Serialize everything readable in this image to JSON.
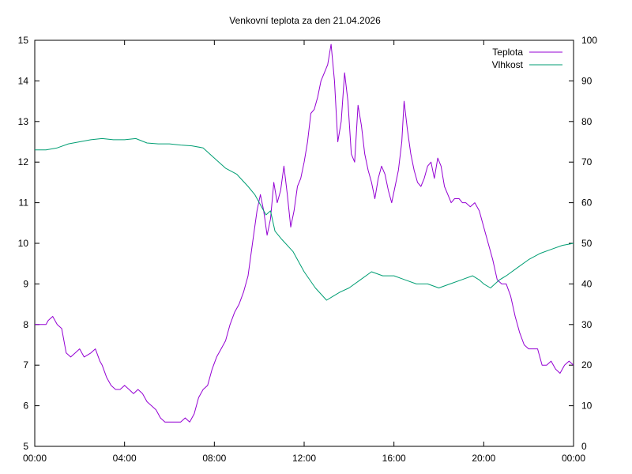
{
  "chart_data": {
    "type": "line",
    "title": "Venkovní teplota za den 21.04.2026",
    "xlabel": "",
    "ylabel": "",
    "y2label": "",
    "x_range_hours": [
      0,
      24
    ],
    "x_ticks": [
      {
        "h": 0,
        "label": "00:00"
      },
      {
        "h": 4,
        "label": "04:00"
      },
      {
        "h": 8,
        "label": "08:00"
      },
      {
        "h": 12,
        "label": "12:00"
      },
      {
        "h": 16,
        "label": "16:00"
      },
      {
        "h": 20,
        "label": "20:00"
      },
      {
        "h": 24,
        "label": "00:00"
      }
    ],
    "ylim": [
      5,
      15
    ],
    "y_ticks": [
      5,
      6,
      7,
      8,
      9,
      10,
      11,
      12,
      13,
      14,
      15
    ],
    "y2lim": [
      0,
      100
    ],
    "y2_ticks": [
      0,
      10,
      20,
      30,
      40,
      50,
      60,
      70,
      80,
      90,
      100
    ],
    "grid": false,
    "legend_position": "top-right",
    "series": [
      {
        "name": "Teplota",
        "axis": "left",
        "color": "#9400d3",
        "points": [
          [
            0.0,
            8.0
          ],
          [
            0.5,
            8.0
          ],
          [
            0.6,
            8.1
          ],
          [
            0.8,
            8.2
          ],
          [
            1.0,
            8.0
          ],
          [
            1.2,
            7.9
          ],
          [
            1.4,
            7.3
          ],
          [
            1.6,
            7.2
          ],
          [
            1.8,
            7.3
          ],
          [
            2.0,
            7.4
          ],
          [
            2.2,
            7.2
          ],
          [
            2.5,
            7.3
          ],
          [
            2.7,
            7.4
          ],
          [
            2.9,
            7.1
          ],
          [
            3.0,
            7.0
          ],
          [
            3.2,
            6.7
          ],
          [
            3.4,
            6.5
          ],
          [
            3.6,
            6.4
          ],
          [
            3.8,
            6.4
          ],
          [
            4.0,
            6.5
          ],
          [
            4.2,
            6.4
          ],
          [
            4.4,
            6.3
          ],
          [
            4.6,
            6.4
          ],
          [
            4.8,
            6.3
          ],
          [
            5.0,
            6.1
          ],
          [
            5.2,
            6.0
          ],
          [
            5.4,
            5.9
          ],
          [
            5.6,
            5.7
          ],
          [
            5.8,
            5.6
          ],
          [
            6.0,
            5.6
          ],
          [
            6.5,
            5.6
          ],
          [
            6.7,
            5.7
          ],
          [
            6.9,
            5.6
          ],
          [
            7.1,
            5.8
          ],
          [
            7.3,
            6.2
          ],
          [
            7.5,
            6.4
          ],
          [
            7.7,
            6.5
          ],
          [
            7.9,
            6.9
          ],
          [
            8.1,
            7.2
          ],
          [
            8.3,
            7.4
          ],
          [
            8.5,
            7.6
          ],
          [
            8.7,
            8.0
          ],
          [
            8.9,
            8.3
          ],
          [
            9.1,
            8.5
          ],
          [
            9.3,
            8.8
          ],
          [
            9.5,
            9.2
          ],
          [
            9.7,
            10.0
          ],
          [
            9.9,
            10.8
          ],
          [
            10.05,
            11.2
          ],
          [
            10.2,
            10.8
          ],
          [
            10.35,
            10.2
          ],
          [
            10.5,
            10.6
          ],
          [
            10.65,
            11.5
          ],
          [
            10.8,
            11.0
          ],
          [
            10.95,
            11.3
          ],
          [
            11.1,
            11.9
          ],
          [
            11.25,
            11.2
          ],
          [
            11.4,
            10.4
          ],
          [
            11.55,
            10.8
          ],
          [
            11.7,
            11.4
          ],
          [
            11.85,
            11.6
          ],
          [
            12.0,
            12.0
          ],
          [
            12.15,
            12.5
          ],
          [
            12.3,
            13.2
          ],
          [
            12.45,
            13.3
          ],
          [
            12.6,
            13.6
          ],
          [
            12.75,
            14.0
          ],
          [
            12.9,
            14.2
          ],
          [
            13.05,
            14.4
          ],
          [
            13.2,
            14.9
          ],
          [
            13.35,
            14.0
          ],
          [
            13.5,
            12.5
          ],
          [
            13.65,
            13.0
          ],
          [
            13.8,
            14.2
          ],
          [
            13.95,
            13.5
          ],
          [
            14.1,
            12.2
          ],
          [
            14.25,
            12.0
          ],
          [
            14.4,
            13.4
          ],
          [
            14.55,
            12.9
          ],
          [
            14.7,
            12.2
          ],
          [
            14.85,
            11.8
          ],
          [
            15.0,
            11.5
          ],
          [
            15.15,
            11.1
          ],
          [
            15.3,
            11.6
          ],
          [
            15.45,
            11.9
          ],
          [
            15.6,
            11.7
          ],
          [
            15.75,
            11.3
          ],
          [
            15.9,
            11.0
          ],
          [
            16.05,
            11.4
          ],
          [
            16.2,
            11.8
          ],
          [
            16.35,
            12.5
          ],
          [
            16.45,
            13.5
          ],
          [
            16.6,
            12.8
          ],
          [
            16.75,
            12.2
          ],
          [
            16.9,
            11.8
          ],
          [
            17.05,
            11.5
          ],
          [
            17.2,
            11.4
          ],
          [
            17.35,
            11.6
          ],
          [
            17.5,
            11.9
          ],
          [
            17.65,
            12.0
          ],
          [
            17.8,
            11.6
          ],
          [
            17.95,
            12.1
          ],
          [
            18.1,
            11.9
          ],
          [
            18.25,
            11.4
          ],
          [
            18.4,
            11.2
          ],
          [
            18.55,
            11.0
          ],
          [
            18.7,
            11.1
          ],
          [
            18.9,
            11.1
          ],
          [
            19.05,
            11.0
          ],
          [
            19.2,
            11.0
          ],
          [
            19.4,
            10.9
          ],
          [
            19.6,
            11.0
          ],
          [
            19.8,
            10.8
          ],
          [
            20.0,
            10.4
          ],
          [
            20.2,
            10.0
          ],
          [
            20.4,
            9.6
          ],
          [
            20.6,
            9.1
          ],
          [
            20.8,
            9.0
          ],
          [
            21.0,
            9.0
          ],
          [
            21.2,
            8.7
          ],
          [
            21.4,
            8.2
          ],
          [
            21.6,
            7.8
          ],
          [
            21.8,
            7.5
          ],
          [
            22.0,
            7.4
          ],
          [
            22.2,
            7.4
          ],
          [
            22.4,
            7.4
          ],
          [
            22.6,
            7.0
          ],
          [
            22.8,
            7.0
          ],
          [
            23.0,
            7.1
          ],
          [
            23.2,
            6.9
          ],
          [
            23.4,
            6.8
          ],
          [
            23.6,
            7.0
          ],
          [
            23.8,
            7.1
          ],
          [
            24.0,
            7.0
          ]
        ]
      },
      {
        "name": "Vlhkost",
        "axis": "right",
        "color": "#009e73",
        "points": [
          [
            0.0,
            73
          ],
          [
            0.5,
            73
          ],
          [
            1.0,
            73.5
          ],
          [
            1.5,
            74.5
          ],
          [
            2.0,
            75
          ],
          [
            2.5,
            75.5
          ],
          [
            3.0,
            75.8
          ],
          [
            3.5,
            75.5
          ],
          [
            4.0,
            75.5
          ],
          [
            4.5,
            75.8
          ],
          [
            5.0,
            74.7
          ],
          [
            5.5,
            74.5
          ],
          [
            6.0,
            74.5
          ],
          [
            6.5,
            74.2
          ],
          [
            7.0,
            74
          ],
          [
            7.5,
            73.5
          ],
          [
            8.0,
            71
          ],
          [
            8.5,
            68.5
          ],
          [
            9.0,
            67
          ],
          [
            9.5,
            64
          ],
          [
            9.8,
            62
          ],
          [
            10.0,
            60
          ],
          [
            10.3,
            57
          ],
          [
            10.5,
            58
          ],
          [
            10.7,
            53
          ],
          [
            11.0,
            51
          ],
          [
            11.5,
            48
          ],
          [
            12.0,
            43
          ],
          [
            12.5,
            39
          ],
          [
            13.0,
            36
          ],
          [
            13.3,
            37
          ],
          [
            13.6,
            38
          ],
          [
            14.0,
            39
          ],
          [
            14.5,
            41
          ],
          [
            15.0,
            43
          ],
          [
            15.5,
            42
          ],
          [
            16.0,
            42
          ],
          [
            16.5,
            41
          ],
          [
            17.0,
            40
          ],
          [
            17.5,
            40
          ],
          [
            18.0,
            39
          ],
          [
            18.5,
            40
          ],
          [
            19.0,
            41
          ],
          [
            19.5,
            42
          ],
          [
            19.8,
            41
          ],
          [
            20.0,
            40
          ],
          [
            20.3,
            39
          ],
          [
            20.7,
            41
          ],
          [
            21.0,
            42
          ],
          [
            21.5,
            44
          ],
          [
            22.0,
            46
          ],
          [
            22.5,
            47.5
          ],
          [
            23.0,
            48.5
          ],
          [
            23.5,
            49.5
          ],
          [
            24.0,
            50
          ]
        ]
      }
    ]
  }
}
